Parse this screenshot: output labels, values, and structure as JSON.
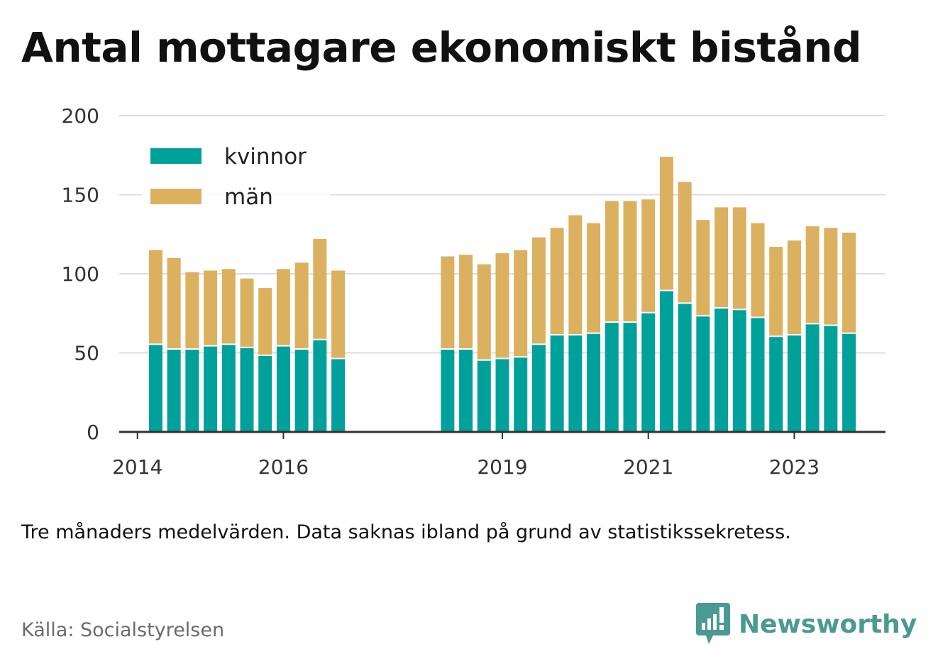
{
  "title": "Antal mottagare ekonomiskt bistånd",
  "note": "Tre månaders medelvärden. Data saknas ibland på grund av statistikssekretess.",
  "source": "Källa: Socialstyrelsen",
  "brand": "Newsworthy",
  "colors": {
    "women": "#00A19A",
    "men": "#DBB05E",
    "grid": "#dddddd",
    "axis": "#333333",
    "brand": "#4a9a93"
  },
  "chart_data": {
    "type": "bar",
    "stacked": true,
    "ylim": [
      0,
      200
    ],
    "yticks": [
      0,
      50,
      100,
      150,
      200
    ],
    "grid": true,
    "legend_position": "top-left",
    "xlim": [
      2013.75,
      2024.25
    ],
    "xticks": [
      2014,
      2016,
      2019,
      2021,
      2023
    ],
    "x": [
      2014.25,
      2014.5,
      2014.75,
      2015.0,
      2015.25,
      2015.5,
      2015.75,
      2016.0,
      2016.25,
      2016.5,
      2016.75,
      2018.25,
      2018.5,
      2018.75,
      2019.0,
      2019.25,
      2019.5,
      2019.75,
      2020.0,
      2020.25,
      2020.5,
      2020.75,
      2021.0,
      2021.25,
      2021.5,
      2021.75,
      2022.0,
      2022.25,
      2022.5,
      2022.75,
      2023.0,
      2023.25,
      2023.5,
      2023.75
    ],
    "series": [
      {
        "name": "kvinnor",
        "values": [
          55,
          52,
          52,
          54,
          55,
          53,
          48,
          54,
          52,
          58,
          46,
          52,
          52,
          45,
          46,
          47,
          55,
          61,
          61,
          62,
          69,
          69,
          75,
          89,
          81,
          73,
          78,
          77,
          72,
          60,
          61,
          68,
          67,
          62
        ]
      },
      {
        "name": "män",
        "values": [
          60,
          58,
          49,
          48,
          48,
          44,
          43,
          49,
          55,
          64,
          56,
          59,
          60,
          61,
          67,
          68,
          68,
          68,
          76,
          70,
          77,
          77,
          72,
          85,
          77,
          61,
          64,
          65,
          60,
          57,
          60,
          62,
          62,
          64
        ]
      }
    ]
  }
}
